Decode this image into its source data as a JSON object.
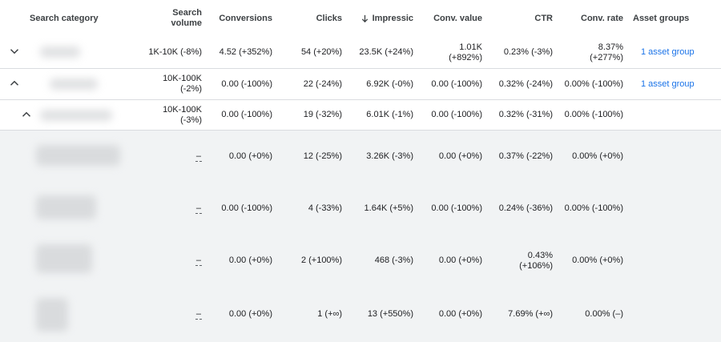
{
  "headers": {
    "search_category": "Search category",
    "search_volume": "Search\nvolume",
    "conversions": "Conversions",
    "clicks": "Clicks",
    "impressions": "Impressic",
    "conv_value": "Conv. value",
    "ctr": "CTR",
    "conv_rate": "Conv. rate",
    "asset_groups": "Asset groups"
  },
  "rows": [
    {
      "search_volume": "1K-10K (-8%)",
      "conversions": "4.52 (+352%)",
      "clicks": "54 (+20%)",
      "impressions": "23.5K (+24%)",
      "conv_value": "1.01K\n(+892%)",
      "ctr": "0.23% (-3%)",
      "conv_rate": "8.37%\n(+277%)",
      "asset_groups": "1 asset group"
    },
    {
      "search_volume": "10K-100K\n(-2%)",
      "conversions": "0.00 (-100%)",
      "clicks": "22 (-24%)",
      "impressions": "6.92K (-0%)",
      "conv_value": "0.00 (-100%)",
      "ctr": "0.32% (-24%)",
      "conv_rate": "0.00% (-100%)",
      "asset_groups": "1 asset group"
    },
    {
      "search_volume": "10K-100K\n(-3%)",
      "conversions": "0.00 (-100%)",
      "clicks": "19 (-32%)",
      "impressions": "6.01K (-1%)",
      "conv_value": "0.00 (-100%)",
      "ctr": "0.32% (-31%)",
      "conv_rate": "0.00% (-100%)",
      "asset_groups": ""
    }
  ],
  "subrows": [
    {
      "search_volume": "–",
      "conversions": "0.00 (+0%)",
      "clicks": "12 (-25%)",
      "impressions": "3.26K (-3%)",
      "conv_value": "0.00 (+0%)",
      "ctr": "0.37% (-22%)",
      "conv_rate": "0.00% (+0%)"
    },
    {
      "search_volume": "–",
      "conversions": "0.00 (-100%)",
      "clicks": "4 (-33%)",
      "impressions": "1.64K (+5%)",
      "conv_value": "0.00 (-100%)",
      "ctr": "0.24% (-36%)",
      "conv_rate": "0.00% (-100%)"
    },
    {
      "search_volume": "–",
      "conversions": "0.00 (+0%)",
      "clicks": "2 (+100%)",
      "impressions": "468 (-3%)",
      "conv_value": "0.00 (+0%)",
      "ctr": "0.43%\n(+106%)",
      "conv_rate": "0.00% (+0%)"
    },
    {
      "search_volume": "–",
      "conversions": "0.00 (+0%)",
      "clicks": "1 (+∞)",
      "impressions": "13 (+550%)",
      "conv_value": "0.00 (+0%)",
      "ctr": "7.69% (+∞)",
      "conv_rate": "0.00% (–)"
    }
  ],
  "icons": {
    "expand": "chevron-down-icon",
    "collapse": "chevron-up-icon",
    "sort": "arrow-down-icon"
  },
  "colors": {
    "link": "#1a73e8",
    "subrow_bg": "#f1f3f4",
    "border": "#dadce0"
  }
}
